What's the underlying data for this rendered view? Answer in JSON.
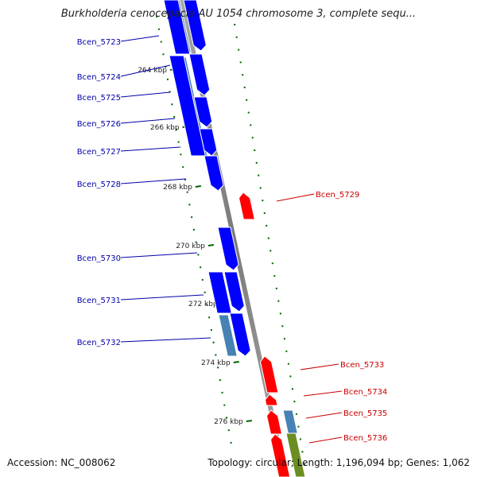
{
  "title": "Burkholderia cenocepacia AU 1054 chromosome 3, complete sequ...",
  "footer": {
    "accession": "Accession: NC_008062",
    "topology": "Topology: circular; Length: 1,196,094 bp; Genes: 1,062"
  },
  "colors": {
    "backbone": "#8a8a8a",
    "forward_cds": "#0000ff",
    "reverse_cds": "#ff0000",
    "forward_label": "#0000aa",
    "reverse_label": "#cc0000",
    "forward_secondary": "#4682b4",
    "reverse_secondary": "#6b8e23",
    "tick": "#006400"
  },
  "ticks": [
    {
      "label": "264 kbp"
    },
    {
      "label": "266 kbp"
    },
    {
      "label": "268 kbp"
    },
    {
      "label": "270 kbp"
    },
    {
      "label": "272 kbp"
    },
    {
      "label": "274 kbp"
    },
    {
      "label": "276 kbp"
    }
  ],
  "forward_genes": [
    {
      "name": "Bcen_5723"
    },
    {
      "name": "Bcen_5724"
    },
    {
      "name": "Bcen_5725"
    },
    {
      "name": "Bcen_5726"
    },
    {
      "name": "Bcen_5727"
    },
    {
      "name": "Bcen_5728"
    },
    {
      "name": "Bcen_5730"
    },
    {
      "name": "Bcen_5731"
    },
    {
      "name": "Bcen_5732"
    }
  ],
  "reverse_genes": [
    {
      "name": "Bcen_5729"
    },
    {
      "name": "Bcen_5733"
    },
    {
      "name": "Bcen_5734"
    },
    {
      "name": "Bcen_5735"
    },
    {
      "name": "Bcen_5736"
    }
  ]
}
